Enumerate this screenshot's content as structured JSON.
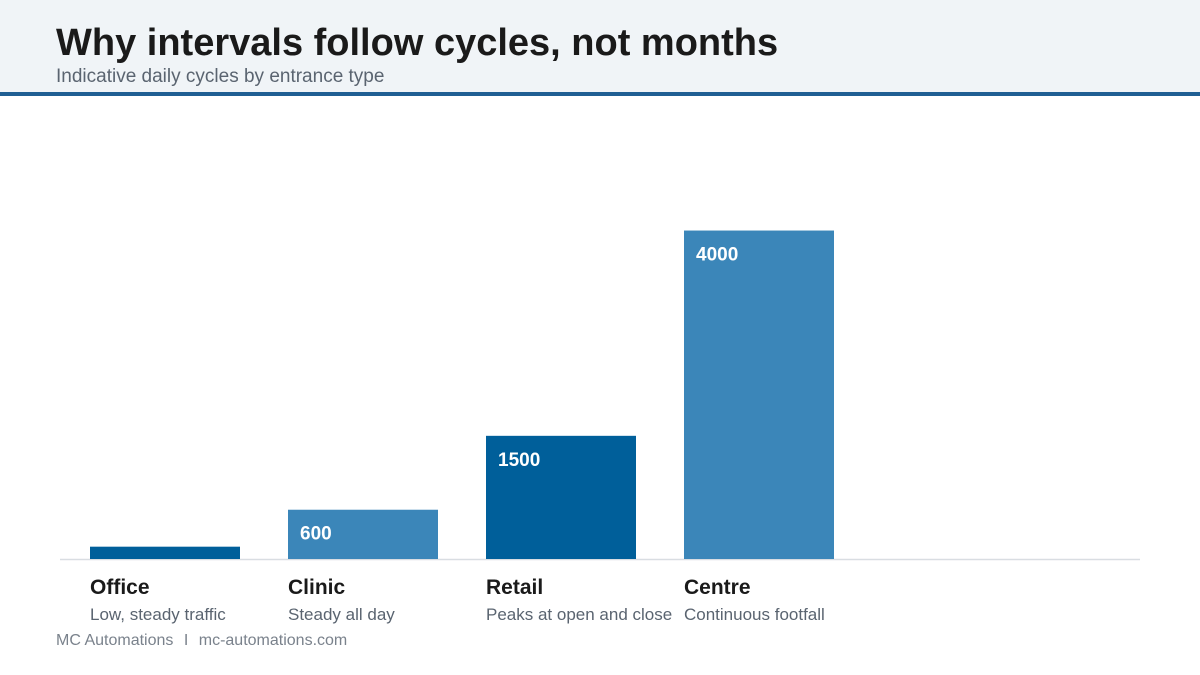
{
  "header": {
    "title": "Why intervals follow cycles, not months",
    "subtitle": "Indicative daily cycles by entrance type"
  },
  "footer": {
    "brand": "MC Automations",
    "separator": "I",
    "url": "mc-automations.com"
  },
  "colors": {
    "dark_bar": "#005f9a",
    "light_bar": "#3b86b9",
    "header_rule": "#1f5f93",
    "baseline": "#d9dde2"
  },
  "chart_data": {
    "type": "bar",
    "categories": [
      "Office",
      "Clinic",
      "Retail",
      "Centre"
    ],
    "descriptions": [
      "Low, steady traffic",
      "Steady all day",
      "Peaks at open and close",
      "Continuous footfall"
    ],
    "values": [
      150,
      600,
      1500,
      4000
    ],
    "data_labels": [
      "",
      "600",
      "1500",
      "4000"
    ],
    "bar_colors": [
      "#005f9a",
      "#3b86b9",
      "#005f9a",
      "#3b86b9"
    ],
    "title": "Why intervals follow cycles, not months",
    "subtitle": "Indicative daily cycles by entrance type",
    "xlabel": "",
    "ylabel": "",
    "ylim": [
      0,
      5200
    ],
    "grid": false,
    "legend": "none"
  }
}
